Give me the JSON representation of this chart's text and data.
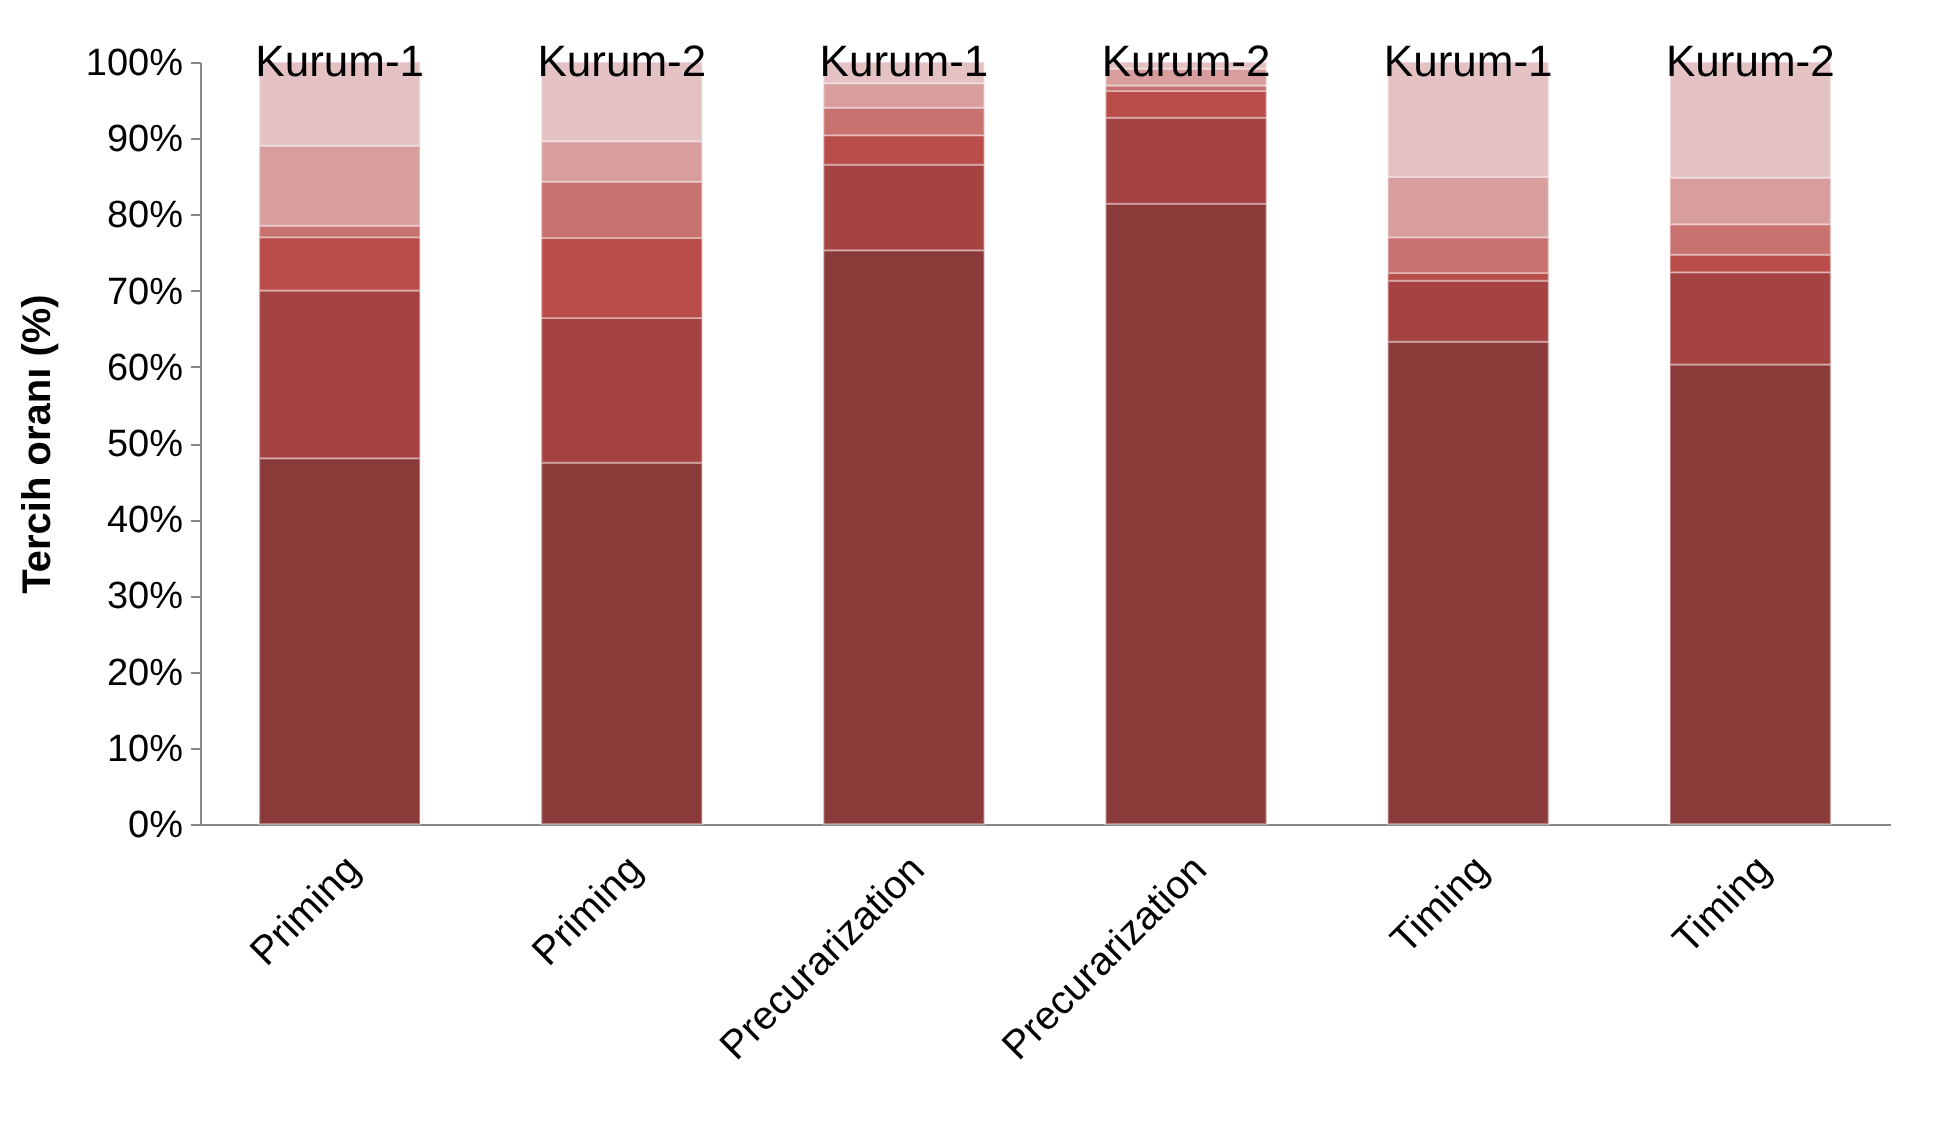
{
  "chart_data": {
    "type": "bar",
    "stacked": true,
    "ylabel": "Tercih oranı (%)",
    "categories": [
      "Priming",
      "Priming",
      "Precurarization",
      "Precurarization",
      "Timing",
      "Timing"
    ],
    "series": [
      {
        "color": "#8b3a3a",
        "values": [
          48.0,
          47.4,
          75.3,
          81.4,
          63.3,
          60.3
        ]
      },
      {
        "color": "#a44342",
        "values": [
          22.0,
          19.0,
          11.2,
          11.3,
          8.0,
          12.1
        ]
      },
      {
        "color": "#b84d4a",
        "values": [
          7.0,
          10.5,
          3.9,
          3.5,
          1.0,
          2.3
        ]
      },
      {
        "color": "#c87270",
        "values": [
          1.5,
          7.4,
          3.6,
          0.7,
          4.7,
          4.0
        ]
      },
      {
        "color": "#d89e9e",
        "values": [
          10.5,
          5.3,
          3.2,
          2.2,
          7.9,
          6.1
        ]
      },
      {
        "color": "#e4c2c4",
        "values": [
          11.0,
          10.4,
          2.8,
          0.9,
          15.1,
          15.2
        ]
      }
    ],
    "ylim": [
      0,
      100
    ],
    "yticks": [
      {
        "value": 0,
        "label": "0%"
      },
      {
        "value": 10,
        "label": "10%"
      },
      {
        "value": 20,
        "label": "20%"
      },
      {
        "value": 30,
        "label": "30%"
      },
      {
        "value": 40,
        "label": "40%"
      },
      {
        "value": 50,
        "label": "50%"
      },
      {
        "value": 60,
        "label": "60%"
      },
      {
        "value": 70,
        "label": "70%"
      },
      {
        "value": 80,
        "label": "80%"
      },
      {
        "value": 90,
        "label": "90%"
      },
      {
        "value": 100,
        "label": "100%"
      }
    ],
    "annotations": [
      "Kurum-1",
      "Kurum-2",
      "Kurum-1",
      "Kurum-2",
      "Kurum-1",
      "Kurum-2"
    ]
  }
}
